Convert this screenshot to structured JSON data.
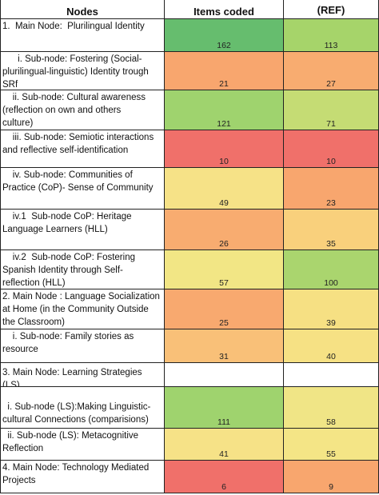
{
  "header": {
    "col_nodes": "Nodes",
    "col_items": "Items coded",
    "col_ref_top": "",
    "col_ref": "(REF)"
  },
  "rows": [
    {
      "node": "1.  Main Node:  Plurilingual Identity",
      "items": "162",
      "ref": "113",
      "items_color": "#66bd6e",
      "ref_color": "#a6d46a"
    },
    {
      "node": "      i. Sub-node: Fostering (Social-\nplurilingual-linguistic) Identity trough\nSRf",
      "items": "21",
      "ref": "27",
      "items_color": "#f8a66e",
      "ref_color": "#f8ac70"
    },
    {
      "node": "    ii. Sub-node: Cultural awareness\n(reflection on own and others\nculture)",
      "items": "121",
      "ref": "71",
      "items_color": "#9fd36e",
      "ref_color": "#c5dc74"
    },
    {
      "node": "    iii. Sub-node: Semiotic interactions\nand reflective self-identification",
      "items": "10",
      "ref": "10",
      "items_color": "#f0706a",
      "ref_color": "#f0706a"
    },
    {
      "node": "    iv. Sub-node: Communities of\nPractice (CoP)- Sense of Community",
      "items": "49",
      "ref": "23",
      "items_color": "#f6e287",
      "ref_color": "#f8a66e"
    },
    {
      "node": "    iv.1  Sub-node CoP: Heritage\nLanguage Learners (HLL)",
      "items": "26",
      "ref": "35",
      "items_color": "#f8ac70",
      "ref_color": "#f9d07c"
    },
    {
      "node": "    iv.2  Sub-node CoP: Fostering\nSpanish Identity through Self-\nreflection (HLL)",
      "items": "57",
      "ref": "100",
      "items_color": "#f2e685",
      "ref_color": "#aad56e"
    },
    {
      "node": "2. Main Node : Language Socialization\nat Home (in the Community Outside\nthe Classroom)",
      "items": "25",
      "ref": "39",
      "items_color": "#f8a96f",
      "ref_color": "#f6e083"
    },
    {
      "node": "    i. Sub-node: Family stories as\nresource",
      "items": "31",
      "ref": "40",
      "items_color": "#f9c078",
      "ref_color": "#f6e184"
    },
    {
      "node": "3. Main Node: Learning Strategies (LS)",
      "items": "",
      "ref": "",
      "items_color": "#ffffff",
      "ref_color": "#ffffff"
    },
    {
      "node": "\n  i. Sub-node (LS):Making Linguistic-\ncultural Connections (comparisions)",
      "items": "111",
      "ref": "58",
      "items_color": "#9fd36e",
      "ref_color": "#f0e586"
    },
    {
      "node": "  ii. Sub-node (LS): Metacognitive\nReflection",
      "items": "41",
      "ref": "55",
      "items_color": "#f6e287",
      "ref_color": "#f4e586"
    },
    {
      "node": "4. Main Node: Technology Mediated\nProjects",
      "items": "6",
      "ref": "9",
      "items_color": "#f0706a",
      "ref_color": "#f8a66e"
    }
  ]
}
